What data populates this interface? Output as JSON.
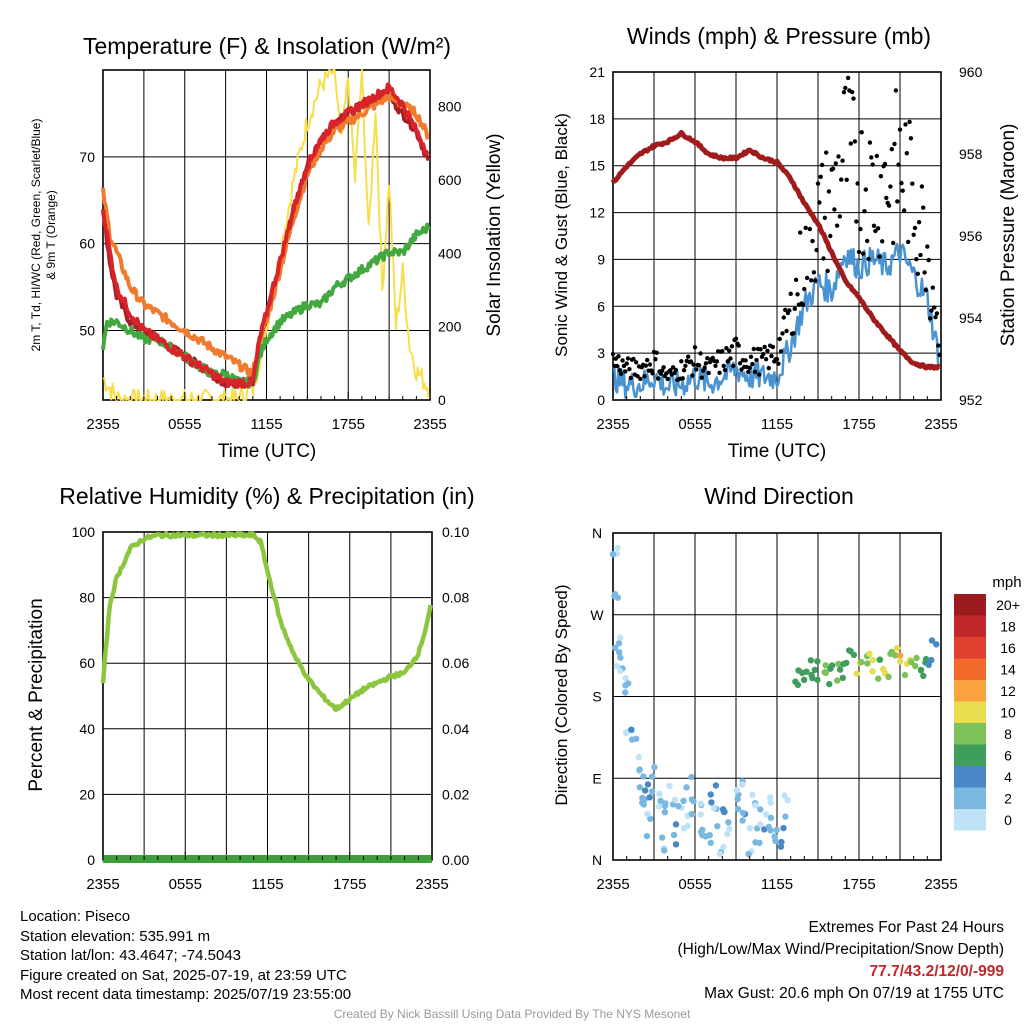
{
  "panels": {
    "temp": {
      "title": "Temperature (F) & Insolation (W/m²)",
      "ylabel_left_line1": "2m T, Td, HI/WC (Red, Green, Scarlet/Blue)",
      "ylabel_left_line2": "& 9m T (Orange)",
      "ylabel_right": "Solar Insolation (Yellow)",
      "xlabel": "Time (UTC)"
    },
    "winds": {
      "title": "Winds (mph) & Pressure (mb)",
      "ylabel_left": "Sonic Wind & Gust (Blue, Black)",
      "ylabel_right": "Station Pressure (Maroon)",
      "xlabel": "Time (UTC)"
    },
    "rh": {
      "title": "Relative Humidity (%) & Precipitation (in)",
      "ylabel_left": "Percent & Precipitation"
    },
    "wdir": {
      "title": "Wind Direction",
      "ylabel_left": "Direction (Colored By Speed)",
      "legend_title": "mph"
    }
  },
  "chart_data": [
    {
      "type": "line",
      "title": "Temperature (F) & Insolation (W/m2)",
      "xlabel": "Time (UTC)",
      "x_ticks": [
        "2355",
        "0555",
        "1155",
        "1755",
        "2355"
      ],
      "ylim": [
        42,
        80
      ],
      "y_ticks": [
        50,
        60,
        70
      ],
      "y2lim": [
        0,
        900
      ],
      "y2_ticks": [
        0,
        200,
        400,
        600,
        800
      ],
      "series": [
        {
          "name": "2m T",
          "color": "#a81e24",
          "axis": "left",
          "hours": [
            0,
            0.5,
            1,
            2,
            3,
            4,
            5,
            6,
            7,
            8,
            9,
            10,
            11,
            11.5,
            12,
            13,
            14,
            15,
            16,
            17,
            18,
            19,
            20,
            21,
            22,
            23,
            24
          ],
          "values": [
            64,
            58,
            54,
            51,
            50,
            49,
            48,
            47,
            46,
            45,
            44,
            44,
            44,
            49,
            52,
            58,
            64,
            69,
            72,
            74,
            75,
            76,
            77,
            77,
            75,
            73,
            69
          ]
        },
        {
          "name": "9m T",
          "color": "#f07a2e",
          "axis": "left",
          "hours": [
            0,
            0.5,
            1,
            2,
            3,
            4,
            5,
            6,
            7,
            8,
            9,
            10,
            11,
            11.5,
            12,
            13,
            14,
            15,
            16,
            17,
            18,
            19,
            20,
            21,
            22,
            23,
            24
          ],
          "values": [
            66,
            61,
            59,
            55,
            53,
            52,
            51,
            50,
            49,
            48,
            47,
            46,
            45,
            49,
            51,
            57,
            63,
            68,
            71,
            73,
            74,
            75,
            76,
            77,
            76,
            75,
            72
          ]
        },
        {
          "name": "Td",
          "color": "#43a840",
          "axis": "left",
          "hours": [
            0,
            0.3,
            1,
            2,
            3,
            4,
            5,
            6,
            7,
            8,
            9,
            10,
            11,
            11.5,
            12,
            13,
            14,
            15,
            16,
            17,
            18,
            19,
            20,
            21,
            22,
            23,
            24
          ],
          "values": [
            48,
            51,
            51,
            50,
            49,
            49,
            48,
            47,
            46,
            45,
            45,
            44,
            44,
            47,
            49,
            51,
            52,
            53,
            53,
            55,
            56,
            57,
            58,
            59,
            59,
            61,
            62
          ]
        },
        {
          "name": "HI/WC",
          "color": "#d9232a",
          "axis": "left",
          "hours": [
            0,
            0.5,
            1,
            2,
            3,
            4,
            5,
            6,
            7,
            8,
            9,
            10,
            11,
            11.5,
            12,
            13,
            14,
            15,
            16,
            17,
            18,
            19,
            20,
            21,
            22,
            23,
            24
          ],
          "values": [
            64,
            59,
            55,
            52,
            50,
            49,
            48,
            47,
            46,
            45,
            44,
            44,
            44,
            49,
            52,
            58,
            64,
            69,
            72,
            74,
            75,
            76,
            77,
            78,
            76,
            73,
            70
          ]
        },
        {
          "name": "Solar Insolation",
          "color": "#f7df4b",
          "axis": "right",
          "hours": [
            0,
            1,
            2,
            8,
            9,
            10,
            11,
            12,
            13,
            14,
            15,
            16,
            17,
            17.5,
            18,
            18.5,
            19,
            19.5,
            20,
            20.5,
            21,
            21.5,
            22,
            22.5,
            23,
            24
          ],
          "values": [
            60,
            5,
            0,
            0,
            0,
            5,
            30,
            200,
            400,
            600,
            760,
            860,
            900,
            700,
            880,
            600,
            900,
            450,
            800,
            300,
            600,
            200,
            350,
            150,
            80,
            30
          ]
        }
      ]
    },
    {
      "type": "line",
      "title": "Winds (mph) & Pressure (mb)",
      "xlabel": "Time (UTC)",
      "x_ticks": [
        "2355",
        "0555",
        "1155",
        "1755",
        "2355"
      ],
      "ylim": [
        0,
        21
      ],
      "y_ticks": [
        0,
        3,
        6,
        9,
        12,
        15,
        18,
        21
      ],
      "y2lim": [
        952,
        960
      ],
      "y2_ticks": [
        952,
        954,
        956,
        958,
        960
      ],
      "series": [
        {
          "name": "Station Pressure",
          "color": "#a01b1b",
          "axis": "right",
          "hours": [
            0,
            1,
            2,
            3,
            4,
            5,
            6,
            7,
            8,
            9,
            10,
            11,
            12,
            13,
            14,
            15,
            16,
            17,
            18,
            19,
            20,
            21,
            22,
            23,
            24
          ],
          "values": [
            957.3,
            957.7,
            958.0,
            958.2,
            958.3,
            958.5,
            958.3,
            958.0,
            957.9,
            957.9,
            958.1,
            957.9,
            957.8,
            957.4,
            956.8,
            956.3,
            955.6,
            954.9,
            954.5,
            954.0,
            953.6,
            953.2,
            952.9,
            952.8,
            952.8
          ]
        },
        {
          "name": "Sonic Wind",
          "color": "#4a93d3",
          "axis": "left",
          "hours": [
            0,
            1,
            2,
            3,
            4,
            5,
            6,
            7,
            8,
            9,
            10,
            11,
            12,
            13,
            14,
            15,
            16,
            17,
            18,
            19,
            20,
            21,
            22,
            23,
            24
          ],
          "values": [
            1.5,
            1.0,
            1.0,
            1.5,
            0.8,
            1.0,
            1.5,
            1.0,
            1.5,
            2.0,
            1.5,
            1.5,
            1.5,
            3.5,
            6.0,
            7.5,
            7.0,
            9.5,
            8.5,
            9.0,
            8.5,
            9.5,
            8.0,
            6.5,
            2.0
          ]
        },
        {
          "name": "Gust",
          "color": "#000000",
          "axis": "left",
          "hours": [
            0,
            1,
            2,
            3,
            4,
            5,
            6,
            7,
            8,
            9,
            10,
            11,
            12,
            13,
            14,
            15,
            16,
            17,
            18,
            19,
            20,
            21,
            22,
            23,
            24
          ],
          "values": [
            2.5,
            2.0,
            2.0,
            2.5,
            1.5,
            2.0,
            2.5,
            2.0,
            2.5,
            3.0,
            2.5,
            2.5,
            3.0,
            5.5,
            9.0,
            11.5,
            12.5,
            16.0,
            14.0,
            13.5,
            14.0,
            15.0,
            13.0,
            10.0,
            3.0
          ]
        }
      ]
    },
    {
      "type": "line",
      "title": "Relative Humidity (%) & Precipitation (in)",
      "x_ticks": [
        "2355",
        "0555",
        "1155",
        "1755",
        "2355"
      ],
      "ylim": [
        0,
        100
      ],
      "y_ticks": [
        0,
        20,
        40,
        60,
        80,
        100
      ],
      "y2lim": [
        0,
        0.1
      ],
      "y2_ticks": [
        "0.00",
        "0.02",
        "0.04",
        "0.06",
        "0.08",
        "0.10"
      ],
      "series": [
        {
          "name": "Relative Humidity",
          "color": "#8cc63f",
          "axis": "left",
          "hours": [
            0,
            0.5,
            1,
            2,
            3,
            4,
            5,
            6,
            7,
            8,
            9,
            10,
            11,
            11.5,
            12,
            13,
            14,
            15,
            16,
            17,
            18,
            19,
            20,
            21,
            22,
            23,
            23.5,
            24
          ],
          "values": [
            54,
            78,
            86,
            95,
            98,
            99,
            99,
            99,
            99,
            99,
            99,
            99,
            99,
            97,
            88,
            72,
            62,
            55,
            50,
            46,
            49,
            52,
            54,
            56,
            57,
            63,
            70,
            79
          ]
        },
        {
          "name": "Precipitation",
          "color": "#3e9e3c",
          "axis": "right",
          "hours": [
            0,
            24
          ],
          "values": [
            0,
            0
          ]
        }
      ]
    },
    {
      "type": "scatter",
      "title": "Wind Direction",
      "x_ticks": [
        "2355",
        "0555",
        "1155",
        "1755",
        "2355"
      ],
      "y_ticks": [
        "N",
        "E",
        "S",
        "W",
        "N"
      ],
      "ylim_deg": [
        0,
        360
      ],
      "legend": {
        "title": "mph",
        "labels": [
          "20+",
          "18",
          "16",
          "14",
          "12",
          "10",
          "8",
          "6",
          "4",
          "2",
          "0"
        ],
        "colors": [
          "#9b1b1e",
          "#c0282c",
          "#e0402e",
          "#f26a2c",
          "#f9a33f",
          "#e8dc4f",
          "#7cc15a",
          "#3f9e5c",
          "#4a87c6",
          "#7ab8e2",
          "#bfe3f6"
        ]
      },
      "points_deg": [
        {
          "hours": [
            0.1,
            0.2,
            0.3,
            0.5,
            0.7,
            1.0,
            1.2,
            1.5,
            1.8,
            2.0,
            2.3,
            2.5,
            2.7,
            3.0,
            3.3,
            3.6,
            4.0,
            4.3,
            4.6,
            5.0,
            5.3,
            5.6,
            6.0,
            6.3,
            6.6,
            7.0,
            7.3,
            7.6,
            8.0,
            8.3,
            8.6,
            9.0,
            9.3,
            9.6,
            10.0,
            10.3,
            10.6,
            11.0,
            11.3,
            11.6,
            12.0,
            12.3,
            12.6
          ],
          "degrees": [
            330,
            290,
            240,
            220,
            200,
            180,
            150,
            130,
            100,
            80,
            60,
            75,
            40,
            90,
            60,
            20,
            50,
            70,
            30,
            60,
            45,
            80,
            55,
            35,
            65,
            25,
            70,
            50,
            20,
            45,
            30,
            60,
            75,
            40,
            20,
            65,
            30,
            50,
            45,
            55,
            35,
            25,
            60
          ],
          "speeds": [
            1,
            2,
            1,
            1,
            1,
            2,
            1,
            3,
            1,
            2,
            1,
            4,
            1,
            2,
            1,
            1,
            2,
            1,
            3,
            1,
            1,
            2,
            1,
            2,
            1,
            1,
            3,
            1,
            1,
            4,
            1,
            2,
            1,
            3,
            1,
            1,
            2,
            1,
            3,
            1,
            2,
            4,
            1
          ]
        },
        {
          "hours": [
            13.5,
            14,
            14.5,
            15,
            15.5,
            16,
            16.5,
            17,
            17.5,
            18,
            18.5,
            19,
            19.5,
            20,
            20.5,
            21,
            21.5,
            22,
            22.5,
            23,
            23.5
          ],
          "degrees": [
            200,
            195,
            210,
            205,
            215,
            200,
            210,
            205,
            220,
            210,
            215,
            220,
            210,
            215,
            220,
            225,
            215,
            220,
            210,
            215,
            230
          ],
          "speeds": [
            6,
            7,
            5,
            6,
            8,
            6,
            7,
            5,
            6,
            9,
            8,
            10,
            7,
            9,
            8,
            11,
            9,
            8,
            6,
            5,
            4
          ]
        }
      ]
    }
  ],
  "footer": {
    "location": "Location: Piseco",
    "elevation": "Station elevation: 535.991 m",
    "latlon": "Station lat/lon: 43.4647; -74.5043",
    "created": "Figure created on Sat, 2025-07-19, at 23:59 UTC",
    "recent": "Most recent data timestamp: 2025/07/19 23:55:00",
    "extremes_title": "Extremes For Past 24 Hours",
    "extremes_sub": "(High/Low/Max Wind/Precipitation/Snow Depth)",
    "extremes_values": "77.7/43.2/12/0/-999",
    "max_gust": "Max Gust: 20.6 mph On 07/19 at 1755 UTC",
    "credit": "Created By Nick Bassill Using Data Provided By The NYS Mesonet"
  }
}
